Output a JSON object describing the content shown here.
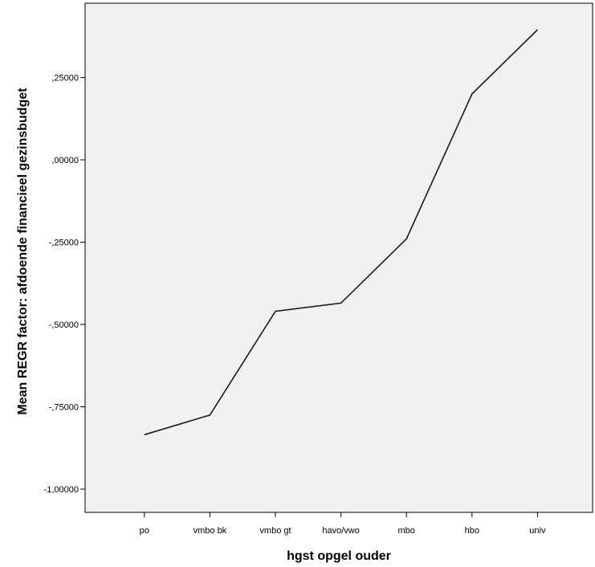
{
  "chart_data": {
    "type": "line",
    "title": "",
    "xlabel": "hgst opgel ouder",
    "ylabel": "Mean REGR factor: afdoende financieel gezinsbudget",
    "categories": [
      "po",
      "vmbo bk",
      "vmbo gt",
      "havo/vwo",
      "mbo",
      "hbo",
      "univ"
    ],
    "series": [
      {
        "values": [
          -0.835,
          -0.775,
          -0.46,
          -0.435,
          -0.24,
          0.2,
          0.395
        ]
      }
    ],
    "yticks": [
      -1.0,
      -0.75,
      -0.5,
      -0.25,
      0.0,
      0.25
    ],
    "ytick_labels": [
      "-1,00000",
      "-,75000",
      "-,50000",
      "-,25000",
      ",00000",
      ",25000"
    ],
    "ylim": [
      -1.075,
      0.47
    ],
    "grid": false,
    "legend": "none",
    "colors": {
      "plot_background": "#f0f0f0",
      "line": "#1a1a1a",
      "axis": "#000000"
    }
  }
}
